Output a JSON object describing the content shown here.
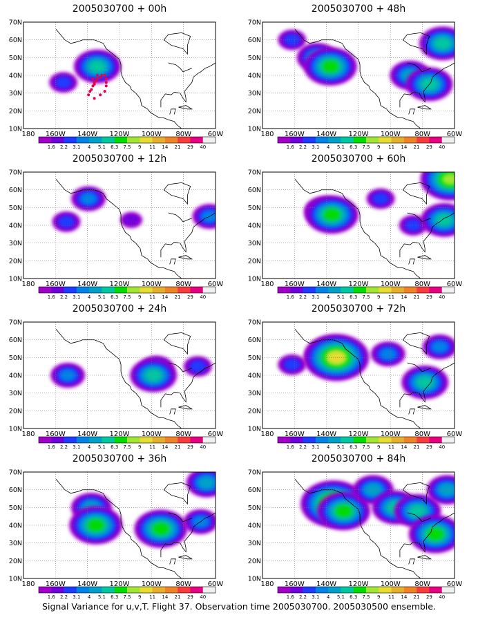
{
  "figure": {
    "caption": "Signal Variance for u,v,T. Flight 37. Observation time 2005030700. 2005030500 ensemble."
  },
  "map_axes": {
    "lon_ticks": [
      "180",
      "160W",
      "140W",
      "120W",
      "100W",
      "80W",
      "60W"
    ],
    "lat_ticks": [
      "10N",
      "20N",
      "30N",
      "40N",
      "50N",
      "60N",
      "70N"
    ],
    "lon_range_deg_west": [
      190,
      60
    ],
    "lat_range_deg_north": [
      10,
      70
    ],
    "gridlines": "dotted"
  },
  "colorbar": {
    "labels": [
      "1.6",
      "2.2",
      "3.1",
      "4",
      "5.1",
      "6.3",
      "7.5",
      "9",
      "11",
      "14",
      "21",
      "29",
      "40"
    ],
    "colors": [
      "#a000c8",
      "#6e00dc",
      "#1e3cff",
      "#0082e6",
      "#00a0c8",
      "#00c8a0",
      "#00dc00",
      "#a0e632",
      "#e6dc32",
      "#e6af2d",
      "#f08228",
      "#fa3c3c",
      "#e60082",
      "#f0f0f0"
    ]
  },
  "panels": [
    {
      "title": "2005030700 + 00h"
    },
    {
      "title": "2005030700 + 48h"
    },
    {
      "title": "2005030700 + 12h"
    },
    {
      "title": "2005030700 + 60h"
    },
    {
      "title": "2005030700 + 24h"
    },
    {
      "title": "2005030700 + 72h"
    },
    {
      "title": "2005030700 + 36h"
    },
    {
      "title": "2005030700 + 84h"
    }
  ],
  "chart_data": {
    "type": "heatmap",
    "field": "signal variance (u,v,T)",
    "color_levels": [
      1.6,
      2.2,
      3.1,
      4,
      5.1,
      6.3,
      7.5,
      9,
      11,
      14,
      21,
      29,
      40
    ],
    "flight_track_panel": 0,
    "flight_track_lonW_lat": [
      [
        137,
        40
      ],
      [
        138,
        39
      ],
      [
        140,
        38
      ],
      [
        141,
        37
      ],
      [
        142,
        36
      ],
      [
        142,
        35
      ],
      [
        143,
        34
      ],
      [
        144,
        32
      ],
      [
        145,
        31
      ],
      [
        146,
        29
      ],
      [
        142,
        27
      ],
      [
        138,
        29
      ],
      [
        135,
        31
      ],
      [
        134,
        34
      ],
      [
        134,
        36
      ],
      [
        134,
        38
      ],
      [
        135,
        40
      ],
      [
        140,
        40
      ],
      [
        143,
        38
      ]
    ],
    "panels": [
      {
        "lead_hours": 0,
        "blobs": [
          {
            "lonW": 140,
            "lat": 45,
            "level": 5
          },
          {
            "lonW": 163,
            "lat": 36,
            "level": 2
          }
        ]
      },
      {
        "lead_hours": 48,
        "blobs": [
          {
            "lonW": 153,
            "lat": 50,
            "level": 4
          },
          {
            "lonW": 144,
            "lat": 45,
            "level": 6
          },
          {
            "lonW": 170,
            "lat": 60,
            "level": 2
          },
          {
            "lonW": 90,
            "lat": 40,
            "level": 4
          },
          {
            "lonW": 77,
            "lat": 35,
            "level": 5
          },
          {
            "lonW": 68,
            "lat": 58,
            "level": 5
          }
        ]
      },
      {
        "lead_hours": 12,
        "blobs": [
          {
            "lonW": 146,
            "lat": 55,
            "level": 3
          },
          {
            "lonW": 161,
            "lat": 42,
            "level": 2
          },
          {
            "lonW": 117,
            "lat": 43,
            "level": 1
          },
          {
            "lonW": 64,
            "lat": 45,
            "level": 3
          }
        ]
      },
      {
        "lead_hours": 60,
        "blobs": [
          {
            "lonW": 148,
            "lat": 48,
            "level": 4
          },
          {
            "lonW": 143,
            "lat": 46,
            "level": 6
          },
          {
            "lonW": 110,
            "lat": 55,
            "level": 2
          },
          {
            "lonW": 88,
            "lat": 40,
            "level": 2
          },
          {
            "lonW": 67,
            "lat": 43,
            "level": 5
          },
          {
            "lonW": 63,
            "lat": 66,
            "level": 7
          }
        ]
      },
      {
        "lead_hours": 24,
        "blobs": [
          {
            "lonW": 160,
            "lat": 40,
            "level": 3
          },
          {
            "lonW": 100,
            "lat": 44,
            "level": 3
          },
          {
            "lonW": 102,
            "lat": 40,
            "level": 5
          },
          {
            "lonW": 72,
            "lat": 45,
            "level": 2
          }
        ]
      },
      {
        "lead_hours": 72,
        "blobs": [
          {
            "lonW": 143,
            "lat": 51,
            "level": 6
          },
          {
            "lonW": 140,
            "lat": 50,
            "level": 8
          },
          {
            "lonW": 170,
            "lat": 46,
            "level": 2
          },
          {
            "lonW": 105,
            "lat": 52,
            "level": 3
          },
          {
            "lonW": 80,
            "lat": 36,
            "level": 5
          },
          {
            "lonW": 70,
            "lat": 56,
            "level": 3
          }
        ]
      },
      {
        "lead_hours": 36,
        "blobs": [
          {
            "lonW": 144,
            "lat": 50,
            "level": 4
          },
          {
            "lonW": 141,
            "lat": 40,
            "level": 6
          },
          {
            "lonW": 97,
            "lat": 38,
            "level": 6
          },
          {
            "lonW": 70,
            "lat": 42,
            "level": 3
          },
          {
            "lonW": 66,
            "lat": 64,
            "level": 4
          }
        ]
      },
      {
        "lead_hours": 84,
        "blobs": [
          {
            "lonW": 142,
            "lat": 52,
            "level": 8
          },
          {
            "lonW": 135,
            "lat": 48,
            "level": 6
          },
          {
            "lonW": 115,
            "lat": 60,
            "level": 4
          },
          {
            "lonW": 100,
            "lat": 50,
            "level": 5
          },
          {
            "lonW": 85,
            "lat": 48,
            "level": 5
          },
          {
            "lonW": 73,
            "lat": 35,
            "level": 6
          },
          {
            "lonW": 65,
            "lat": 60,
            "level": 4
          }
        ]
      }
    ]
  }
}
